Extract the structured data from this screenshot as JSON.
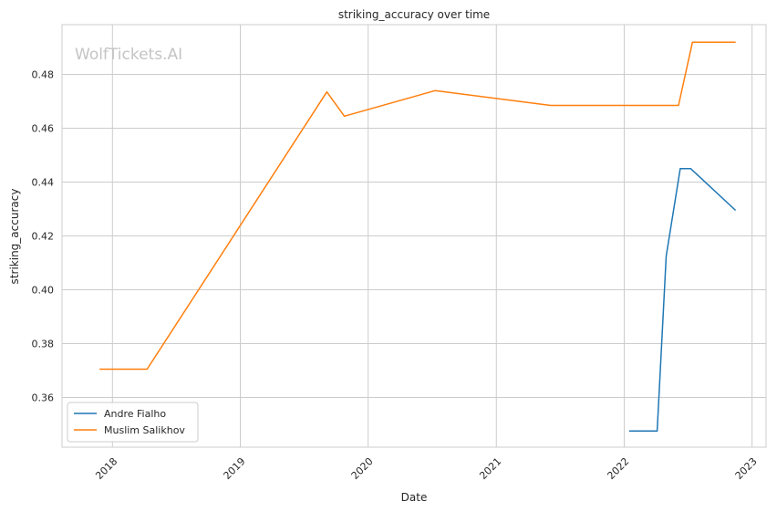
{
  "chart_data": {
    "type": "line",
    "title": "striking_accuracy over time",
    "xlabel": "Date",
    "ylabel": "striking_accuracy",
    "watermark": "WolfTickets.AI",
    "xlim": [
      "2017-08-10",
      "2023-02-10"
    ],
    "ylim": [
      0.3415,
      0.4985
    ],
    "x_ticks": [
      "2018",
      "2019",
      "2020",
      "2021",
      "2022",
      "2023"
    ],
    "y_ticks": [
      "0.36",
      "0.38",
      "0.40",
      "0.42",
      "0.44",
      "0.46",
      "0.48"
    ],
    "grid": true,
    "legend_position": "lower-left",
    "series": [
      {
        "name": "Andre Fialho",
        "color": "#1f77b4",
        "points": [
          {
            "x": "2022-01-15",
            "y": 0.3475
          },
          {
            "x": "2022-04-05",
            "y": 0.3475
          },
          {
            "x": "2022-05-01",
            "y": 0.4125
          },
          {
            "x": "2022-06-10",
            "y": 0.445
          },
          {
            "x": "2022-07-10",
            "y": 0.445
          },
          {
            "x": "2022-11-15",
            "y": 0.4295
          }
        ]
      },
      {
        "name": "Muslim Salikhov",
        "color": "#ff7f0e",
        "points": [
          {
            "x": "2017-11-25",
            "y": 0.3705
          },
          {
            "x": "2018-04-10",
            "y": 0.3705
          },
          {
            "x": "2019-09-05",
            "y": 0.4735
          },
          {
            "x": "2019-10-25",
            "y": 0.4645
          },
          {
            "x": "2020-07-10",
            "y": 0.474
          },
          {
            "x": "2021-06-05",
            "y": 0.4685
          },
          {
            "x": "2022-06-05",
            "y": 0.4685
          },
          {
            "x": "2022-07-15",
            "y": 0.492
          },
          {
            "x": "2022-11-15",
            "y": 0.492
          }
        ]
      }
    ]
  }
}
